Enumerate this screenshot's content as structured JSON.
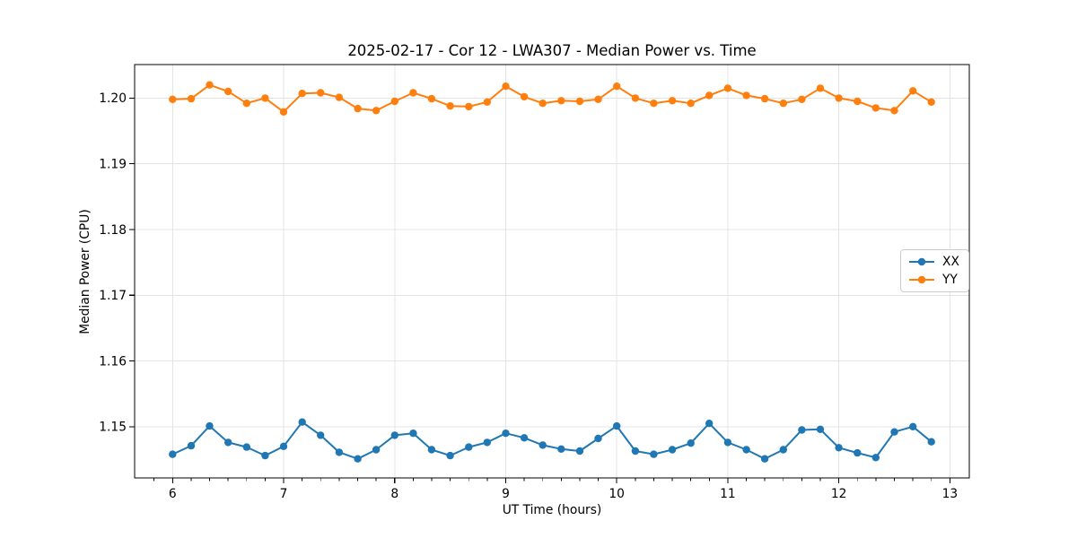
{
  "figure": {
    "title": "2025-02-17 - Cor 12 - LWA307 - Median Power vs. Time",
    "xlabel": "UT Time (hours)",
    "ylabel": "Median Power (CPU)"
  },
  "chart_data": {
    "type": "line",
    "title": "2025-02-17 - Cor 12 - LWA307 - Median Power vs. Time",
    "xlabel": "UT Time (hours)",
    "ylabel": "Median Power (CPU)",
    "xlim": [
      5.658,
      13.175
    ],
    "ylim": [
      1.1422,
      1.2051
    ],
    "x_ticks": [
      6,
      7,
      8,
      9,
      10,
      11,
      12,
      13
    ],
    "y_ticks": [
      1.15,
      1.16,
      1.17,
      1.18,
      1.19,
      1.2
    ],
    "x_minor_step": 0.16667,
    "grid": true,
    "grid_color": "#e4e4e4",
    "legend_position": "center right",
    "x": [
      6.0,
      6.167,
      6.333,
      6.5,
      6.667,
      6.833,
      7.0,
      7.167,
      7.333,
      7.5,
      7.667,
      7.833,
      8.0,
      8.167,
      8.333,
      8.5,
      8.667,
      8.833,
      9.0,
      9.167,
      9.333,
      9.5,
      9.667,
      9.833,
      10.0,
      10.167,
      10.333,
      10.5,
      10.667,
      10.833,
      11.0,
      11.167,
      11.333,
      11.5,
      11.667,
      11.833,
      12.0,
      12.167,
      12.333,
      12.5,
      12.667,
      12.833
    ],
    "series": [
      {
        "name": "XX",
        "color": "#1f77b4",
        "values": [
          1.1458,
          1.1471,
          1.1501,
          1.1476,
          1.1469,
          1.1456,
          1.147,
          1.1507,
          1.1487,
          1.1461,
          1.1451,
          1.1465,
          1.1487,
          1.149,
          1.1465,
          1.1456,
          1.1469,
          1.1476,
          1.149,
          1.1483,
          1.1472,
          1.1466,
          1.1463,
          1.1482,
          1.1501,
          1.1463,
          1.1458,
          1.1465,
          1.1475,
          1.1505,
          1.1476,
          1.1465,
          1.1451,
          1.1465,
          1.1495,
          1.1496,
          1.1468,
          1.146,
          1.1453,
          1.1492,
          1.15,
          1.1477
        ]
      },
      {
        "name": "YY",
        "color": "#ff7f0e",
        "values": [
          1.1998,
          1.1999,
          1.202,
          1.201,
          1.1992,
          1.2,
          1.1979,
          1.2007,
          1.2008,
          1.2001,
          1.1984,
          1.1981,
          1.1995,
          1.2008,
          1.1999,
          1.1988,
          1.1987,
          1.1994,
          1.2018,
          1.2002,
          1.1992,
          1.1996,
          1.1995,
          1.1998,
          1.2018,
          1.2,
          1.1992,
          1.1996,
          1.1992,
          1.2004,
          1.2015,
          1.2004,
          1.1999,
          1.1992,
          1.1998,
          1.2015,
          1.2,
          1.1995,
          1.1985,
          1.1981,
          1.2011,
          1.1994
        ]
      }
    ]
  }
}
